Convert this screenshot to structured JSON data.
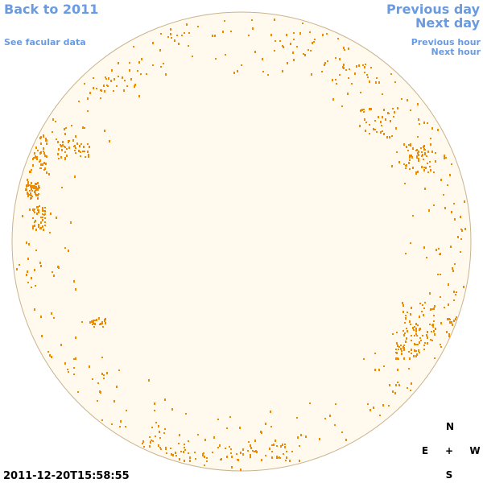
{
  "nav": {
    "back": "Back to 2011",
    "facular": "See facular data",
    "previous_day": "Previous day",
    "next_day": "Next day",
    "previous_hour": "Previous hour",
    "next_hour": "Next hour"
  },
  "timestamp": "2011-12-20T15:58:55",
  "compass": {
    "north": "N",
    "east": "E",
    "center": "+",
    "west": "W",
    "south": "S"
  }
}
